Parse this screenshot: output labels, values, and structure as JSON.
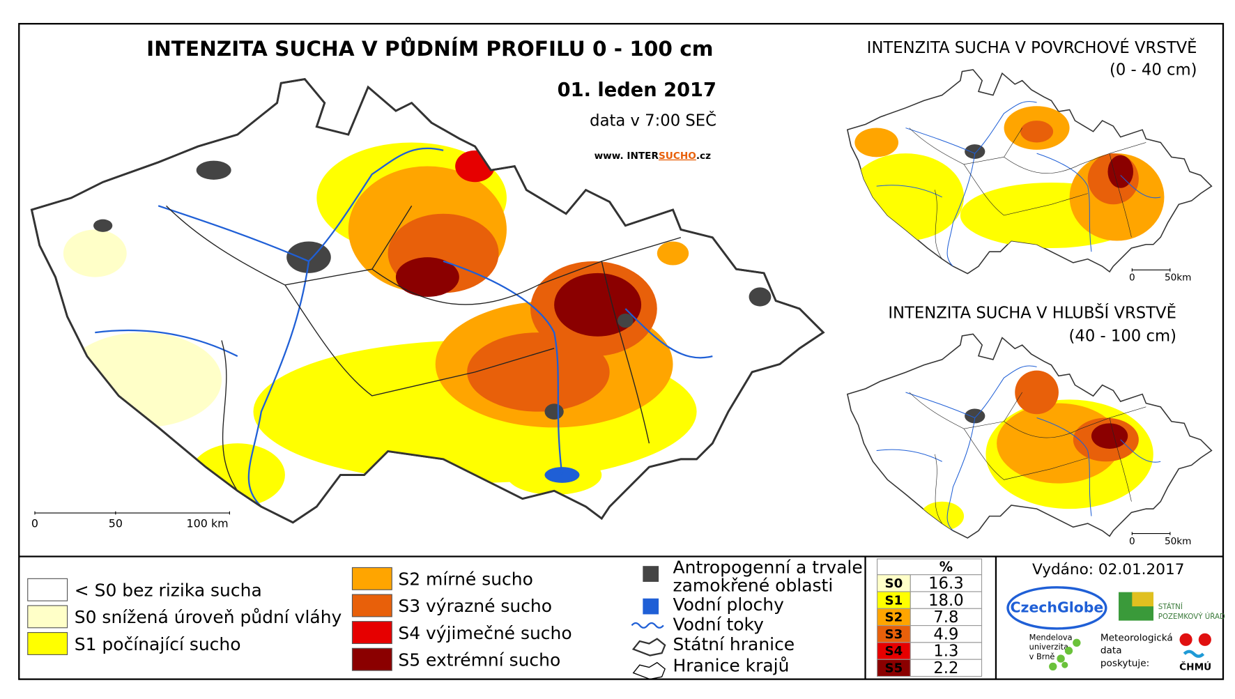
{
  "title": "INTENZITA SUCHA V PŮDNÍM PROFILU 0 - 100 cm",
  "date": "01. leden 2017",
  "data_time": "data v 7:00 SEČ",
  "url": {
    "prefix": "www. INTER",
    "highlight": "SUCHO",
    "suffix": ".cz"
  },
  "main_scale": [
    "0",
    "50",
    "100 km"
  ],
  "insets": [
    {
      "title": "INTENZITA SUCHA V POVRCHOVÉ VRSTVĚ",
      "subtitle": "(0 - 40 cm)",
      "scale": [
        "0",
        "50km"
      ]
    },
    {
      "title": "INTENZITA SUCHA V HLUBŠÍ VRSTVĚ",
      "subtitle": "(40 - 100 cm)",
      "scale": [
        "0",
        "50km"
      ]
    }
  ],
  "legend": {
    "drought_low": [
      {
        "label": "< S0 bez rizika sucha",
        "color": "#ffffff"
      },
      {
        "label": "S0 snížená úroveň půdní vláhy",
        "color": "#ffffc8"
      },
      {
        "label": "S1 počínající sucho",
        "color": "#ffff00"
      }
    ],
    "drought_high": [
      {
        "label": "S2 mírné sucho",
        "color": "#ffa500"
      },
      {
        "label": "S3 výrazné sucho",
        "color": "#e8600a"
      },
      {
        "label": "S4 výjimečné sucho",
        "color": "#e60000"
      },
      {
        "label": "S5 extrémní sucho",
        "color": "#8b0000"
      }
    ],
    "other": {
      "anthropogenic": [
        "Antropogenní a trvale",
        "zamokřené oblasti"
      ],
      "water_bodies": "Vodní plochy",
      "rivers": "Vodní toky",
      "state_border": "Státní hranice",
      "region_border": "Hranice krajů"
    }
  },
  "stats": {
    "header": "%",
    "rows": [
      {
        "code": "S0",
        "value": "16.3",
        "color": "#ffffc8"
      },
      {
        "code": "S1",
        "value": "18.0",
        "color": "#ffff00"
      },
      {
        "code": "S2",
        "value": "7.8",
        "color": "#ffa500"
      },
      {
        "code": "S3",
        "value": "4.9",
        "color": "#e8600a"
      },
      {
        "code": "S4",
        "value": "1.3",
        "color": "#e60000"
      },
      {
        "code": "S5",
        "value": "2.2",
        "color": "#8b0000"
      }
    ]
  },
  "issued": "Vydáno: 02.01.2017",
  "logos": {
    "czechglobe": "CzechGlobe",
    "spu": [
      "STÁTNÍ",
      "POZEMKOVÝ ÚŘAD"
    ],
    "mendelu": [
      "Mendelova",
      "univerzita",
      "v Brně"
    ],
    "chmu_note": [
      "Meteorologická",
      "data",
      "poskytuje:"
    ],
    "chmu": "ČHMÚ"
  }
}
